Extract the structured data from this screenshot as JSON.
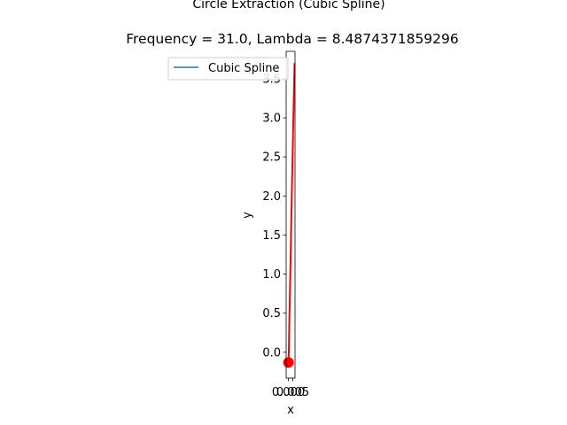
{
  "chart_data": {
    "type": "line",
    "title": "Circle Extraction (Cubic Spline)",
    "subtitle": "Frequency = 31.0, Lambda = 8.4874371859296",
    "xlabel": "x",
    "ylabel": "y",
    "xlim": [
      -0.0025,
      0.0075
    ],
    "ylim": [
      -0.33,
      3.85
    ],
    "x_ticks": [
      0.0,
      0.005
    ],
    "x_tick_labels": [
      "0.000",
      "0.005"
    ],
    "y_ticks": [
      0.0,
      0.5,
      1.0,
      1.5,
      2.0,
      2.5,
      3.0,
      3.5
    ],
    "y_tick_labels": [
      "0.0",
      "0.5",
      "1.0",
      "1.5",
      "2.0",
      "2.5",
      "3.0",
      "3.5"
    ],
    "grid": false,
    "legend": {
      "placement": "upper-left",
      "entries": [
        "Cubic Spline"
      ]
    },
    "series": [
      {
        "name": "Cubic Spline",
        "color": "#1f77b4",
        "x": [
          0.0,
          0.0005
        ],
        "y": [
          -0.15,
          0.0
        ]
      },
      {
        "color": "#ff0000",
        "x": [
          -0.0003,
          0.0,
          0.0005,
          0.001,
          0.002,
          0.003,
          0.004,
          0.005,
          0.006,
          0.007
        ],
        "y": [
          -0.2,
          -0.1,
          0.0,
          0.35,
          0.9,
          1.5,
          2.1,
          2.65,
          3.2,
          3.7
        ]
      }
    ],
    "markers": [
      {
        "color": "#ff0000",
        "x": 0.0001,
        "y": -0.13
      }
    ]
  }
}
